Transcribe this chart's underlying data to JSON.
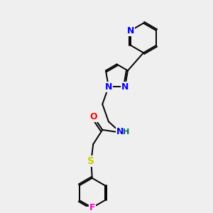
{
  "background_color": "#efefef",
  "atom_colors": {
    "N": "#0000ff",
    "O": "#ff0000",
    "S": "#cccc00",
    "F": "#ff00cc",
    "C": "#000000",
    "H": "#006060"
  },
  "bond_color": "#000000",
  "bond_width": 1.4,
  "dbo": 0.07,
  "font_size": 9,
  "fig_width": 3.0,
  "fig_height": 3.0,
  "dpi": 100
}
